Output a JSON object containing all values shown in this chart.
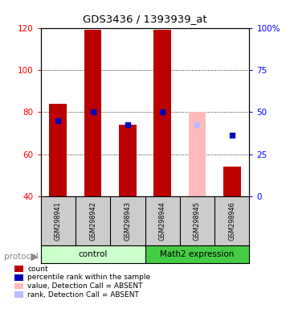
{
  "title": "GDS3436 / 1393939_at",
  "samples": [
    "GSM298941",
    "GSM298942",
    "GSM298943",
    "GSM298944",
    "GSM298945",
    "GSM298946"
  ],
  "ylim_left": [
    40,
    120
  ],
  "ylim_right": [
    0,
    100
  ],
  "yticks_left": [
    40,
    60,
    80,
    100,
    120
  ],
  "ytick_labels_left": [
    "40",
    "60",
    "80",
    "100",
    "120"
  ],
  "yticks_right": [
    0,
    25,
    50,
    75,
    100
  ],
  "ytick_labels_right": [
    "0",
    "25",
    "50",
    "75",
    "100%"
  ],
  "red_bars": [
    84,
    119,
    74,
    119,
    null,
    54
  ],
  "blue_squares_y": [
    76,
    80,
    74,
    80,
    null,
    69
  ],
  "pink_bars": [
    null,
    null,
    null,
    null,
    80,
    null
  ],
  "light_blue_squares_y": [
    null,
    null,
    null,
    null,
    74,
    null
  ],
  "bar_width": 0.5,
  "red_color": "#bb0000",
  "blue_color": "#0000bb",
  "pink_color": "#ffbbbb",
  "light_blue_color": "#bbbbff",
  "plot_bg": "#ffffff",
  "bg_color": "#ffffff",
  "label_box_color": "#cccccc",
  "control_color": "#ccffcc",
  "math2_color": "#44cc44",
  "legend_items": [
    {
      "label": "count",
      "color": "#bb0000"
    },
    {
      "label": "percentile rank within the sample",
      "color": "#0000bb"
    },
    {
      "label": "value, Detection Call = ABSENT",
      "color": "#ffbbbb"
    },
    {
      "label": "rank, Detection Call = ABSENT",
      "color": "#bbbbff"
    }
  ],
  "protocol_label": "protocol",
  "group_label_control": "control",
  "group_label_math2": "Math2 expression",
  "grid_yticks": [
    60,
    80,
    100
  ]
}
